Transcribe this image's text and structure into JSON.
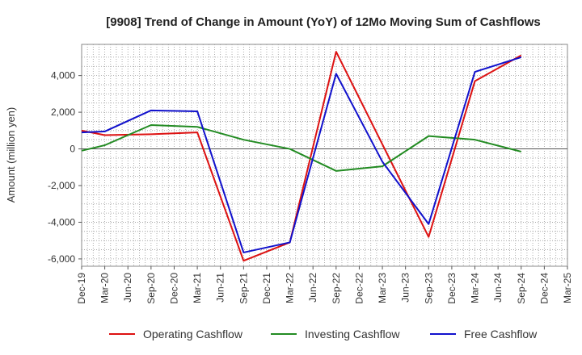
{
  "chart_data": {
    "type": "line",
    "title": "[9908]  Trend of Change in Amount (YoY) of 12Mo Moving Sum of Cashflows",
    "xlabel": "",
    "ylabel": "Amount (million yen)",
    "categories": [
      "Dec-19",
      "Mar-20",
      "Jun-20",
      "Sep-20",
      "Dec-20",
      "Mar-21",
      "Jun-21",
      "Sep-21",
      "Dec-21",
      "Mar-22",
      "Jun-22",
      "Sep-22",
      "Dec-22",
      "Mar-23",
      "Jun-23",
      "Sep-23",
      "Dec-23",
      "Mar-24",
      "Jun-24",
      "Sep-24",
      "Dec-24",
      "Mar-25"
    ],
    "ylim": [
      -6400,
      5700
    ],
    "yticks": [
      -6000,
      -4000,
      -2000,
      0,
      2000,
      4000
    ],
    "ytick_labels": [
      "-6,000",
      "-4,000",
      "-2,000",
      "0",
      "2,000",
      "4,000"
    ],
    "series": [
      {
        "name": "Operating Cashflow",
        "color": "#dd1111",
        "values": [
          1000,
          750,
          null,
          800,
          null,
          900,
          null,
          -6100,
          null,
          -5100,
          null,
          5300,
          null,
          null,
          null,
          -4800,
          null,
          3700,
          null,
          5100,
          null,
          null
        ]
      },
      {
        "name": "Investing Cashflow",
        "color": "#228b22",
        "values": [
          -100,
          200,
          null,
          1300,
          null,
          1200,
          null,
          500,
          null,
          0,
          null,
          -1200,
          null,
          -950,
          null,
          700,
          null,
          500,
          null,
          -150,
          null,
          null
        ]
      },
      {
        "name": "Free Cashflow",
        "color": "#1111cc",
        "values": [
          900,
          950,
          null,
          2100,
          null,
          2050,
          null,
          -5650,
          null,
          -5100,
          null,
          4100,
          null,
          -700,
          null,
          -4100,
          null,
          4200,
          null,
          5000,
          null,
          null
        ]
      }
    ],
    "legend_position": "bottom"
  }
}
